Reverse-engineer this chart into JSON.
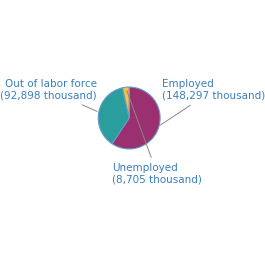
{
  "labels": [
    "Employed",
    "Out of labor force",
    "Unemployed"
  ],
  "label_texts": [
    "Employed\n(148,297 thousand)",
    "Out of labor force\n(92,898 thousand)",
    "Unemployed\n(8,705 thousand)"
  ],
  "values": [
    148297,
    92898,
    8705
  ],
  "colors": [
    "#9b3070",
    "#2a9d9d",
    "#f5c242"
  ],
  "label_color": "#3a7ebf",
  "startangle": 90,
  "background_color": "#ffffff",
  "label_fontsize": 7.5,
  "pie_edge_color": "#6699cc",
  "pie_edge_width": 0.8
}
